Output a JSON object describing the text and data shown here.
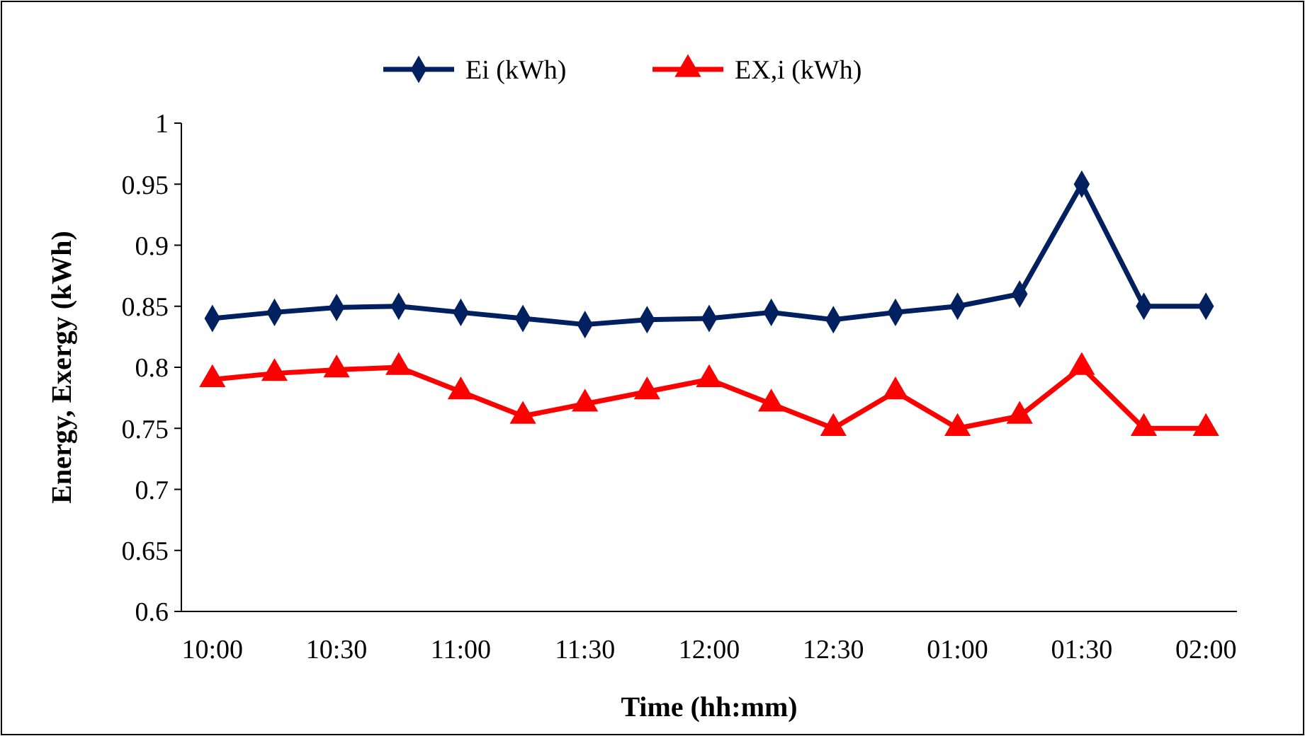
{
  "chart_data": {
    "type": "line",
    "xlabel": "Time (hh:mm)",
    "ylabel": "Energy, Exergy (kWh)",
    "categories": [
      "10:00",
      null,
      "10:30",
      null,
      "11:00",
      null,
      "11:30",
      null,
      "12:00",
      null,
      "12:30",
      null,
      "01:00",
      null,
      "01:30",
      null,
      "02:00"
    ],
    "series": [
      {
        "name": "Ei (kWh)",
        "color": "#002060",
        "marker": "diamond",
        "values": [
          0.84,
          0.845,
          0.849,
          0.85,
          0.845,
          0.84,
          0.835,
          0.839,
          0.84,
          0.845,
          0.839,
          0.845,
          0.85,
          0.86,
          0.95,
          0.85,
          0.85
        ]
      },
      {
        "name": "EX,i (kWh)",
        "color": "#ff0000",
        "marker": "triangle",
        "values": [
          0.79,
          0.795,
          0.798,
          0.8,
          0.78,
          0.76,
          0.77,
          0.78,
          0.79,
          0.77,
          0.75,
          0.78,
          0.75,
          0.76,
          0.8,
          0.75,
          0.75
        ]
      }
    ],
    "ylim": [
      0.6,
      1
    ],
    "yticks": [
      0.6,
      0.65,
      0.7,
      0.75,
      0.8,
      0.85,
      0.9,
      0.95,
      1
    ],
    "grid": false,
    "legend": "top",
    "line_style": "solid"
  }
}
